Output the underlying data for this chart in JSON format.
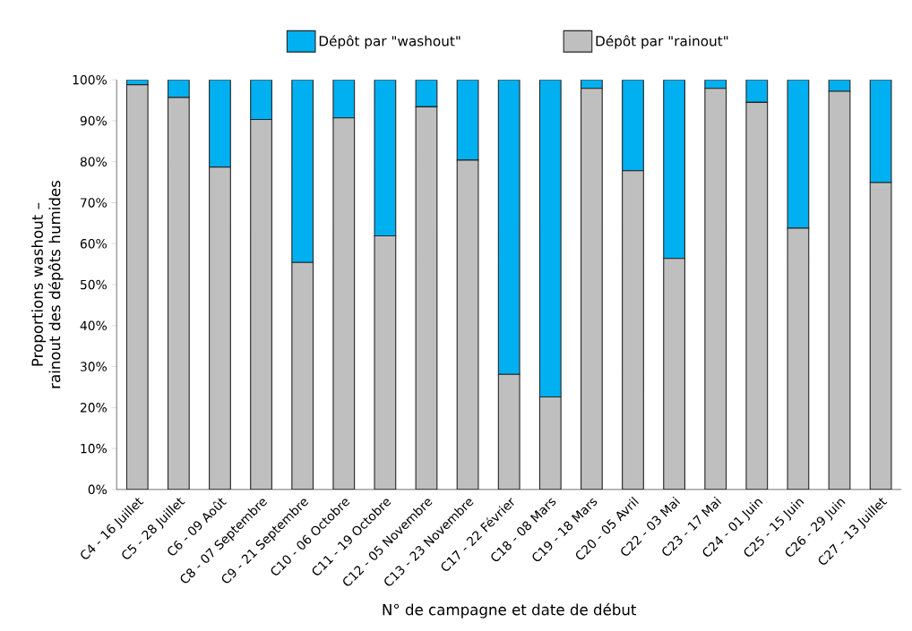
{
  "chart_data": {
    "type": "bar",
    "stacked": true,
    "xlabel": "N° de campagne et date de début",
    "ylabel": "Proportions washout – rainout des dépôts humides",
    "categories": [
      "C4 - 16 Juillet",
      "C5 - 28 Juillet",
      "C6 - 09 Août",
      "C8 - 07 Septembre",
      "C9 - 21 Septembre",
      "C10 - 06 Octobre",
      "C11 - 19 Octobre",
      "C12 - 05 Novembre",
      "C13 - 23 Novembre",
      "C17 - 22 Février",
      "C18 - 08 Mars",
      "C19 - 18 Mars",
      "C20 - 05 Avril",
      "C22 - 03 Mai",
      "C23 - 17 Mai",
      "C24 - 01 Juin",
      "C25 - 15 Juin",
      "C26 - 29 Juin",
      "C27 - 13 Juillet"
    ],
    "series": [
      {
        "name": "Dépôt par \"rainout\"",
        "color": "#bfbfbf",
        "values": [
          98.8,
          95.7,
          78.7,
          90.3,
          55.4,
          90.7,
          61.9,
          93.4,
          80.4,
          28.1,
          22.6,
          97.9,
          77.8,
          56.4,
          97.9,
          94.5,
          63.8,
          97.2,
          74.9
        ]
      },
      {
        "name": "Dépôt par \"washout\"",
        "color": "#00b0f0",
        "values": [
          1.2,
          4.3,
          21.3,
          9.7,
          44.6,
          9.3,
          38.1,
          6.6,
          19.6,
          71.9,
          77.4,
          2.1,
          22.2,
          43.6,
          2.1,
          5.5,
          36.2,
          2.8,
          25.1
        ]
      }
    ],
    "ylim": [
      0,
      100
    ],
    "yticks": [
      {
        "value": 0,
        "label": "0%"
      },
      {
        "value": 10,
        "label": "10%"
      },
      {
        "value": 20,
        "label": "20%"
      },
      {
        "value": 30,
        "label": "30%"
      },
      {
        "value": 40,
        "label": "40%"
      },
      {
        "value": 50,
        "label": "50%"
      },
      {
        "value": 60,
        "label": "60%"
      },
      {
        "value": 70,
        "label": "70%"
      },
      {
        "value": 80,
        "label": "80%"
      },
      {
        "value": 90,
        "label": "90%"
      },
      {
        "value": 100,
        "label": "100%"
      }
    ],
    "grid": false,
    "legend": "top"
  }
}
